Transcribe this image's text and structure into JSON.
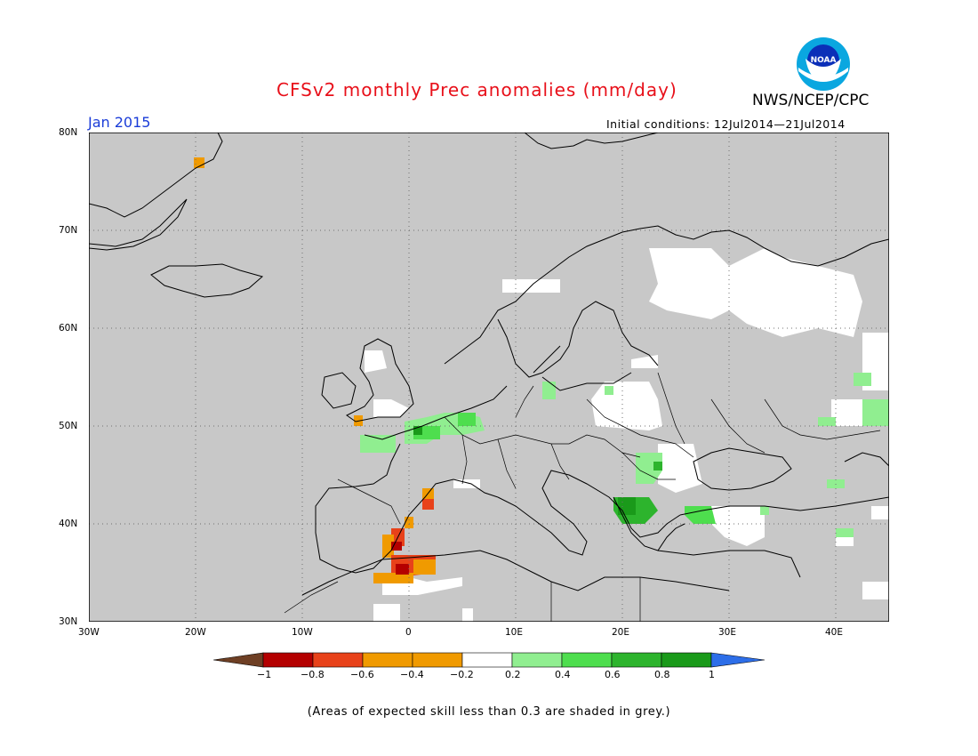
{
  "title": "CFSv2 monthly Prec anomalies (mm/day)",
  "agency": "NWS/NCEP/CPC",
  "logo_text": "NOAA",
  "month": "Jan 2015",
  "initial_conditions": "Initial conditions: 12Jul2014—21Jul2014",
  "lat_labels": [
    "80N",
    "70N",
    "60N",
    "50N",
    "40N",
    "30N"
  ],
  "lon_labels": [
    "30W",
    "20W",
    "10W",
    "0",
    "10E",
    "20E",
    "30E",
    "40E"
  ],
  "colorbar": {
    "labels": [
      "−1",
      "−0.8",
      "−0.6",
      "−0.4",
      "−0.2",
      "0.2",
      "0.4",
      "0.6",
      "0.8",
      "1"
    ],
    "colors": [
      "#6e3f24",
      "#b40000",
      "#e8421a",
      "#f09a00",
      "#ffffff",
      "#90ee90",
      "#4ede4e",
      "#2db42d",
      "#1a9a1a",
      "#2d6ee8"
    ]
  },
  "colors": {
    "skill_grey": "#c8c8c8",
    "neutral": "#ffffff",
    "title_red": "#e8101a",
    "month_blue": "#1a3cd8"
  },
  "footnote": "(Areas of expected skill less than 0.3 are shaded in grey.)"
}
